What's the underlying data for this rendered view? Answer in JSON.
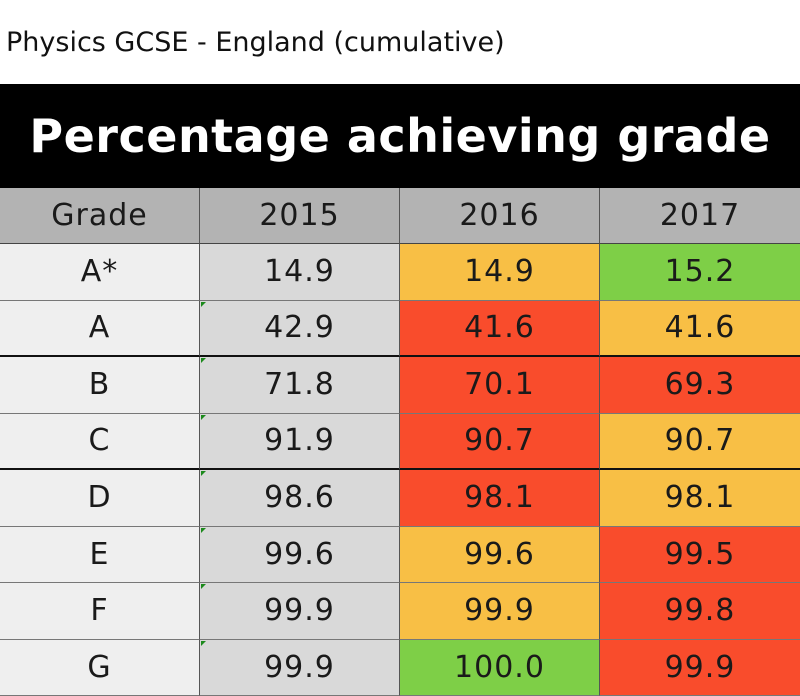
{
  "caption": "Physics GCSE - England (cumulative)",
  "chart_data": {
    "type": "table",
    "title": "Percentage achieving grade",
    "columns": [
      "Grade",
      "2015",
      "2016",
      "2017"
    ],
    "rows": [
      {
        "grade": "A*",
        "values": [
          "14.9",
          "14.9",
          "15.2"
        ],
        "colors": [
          "#d9d9d9",
          "#f8bf45",
          "#7ecf47"
        ]
      },
      {
        "grade": "A",
        "values": [
          "42.9",
          "41.6",
          "41.6"
        ],
        "colors": [
          "#d9d9d9",
          "#f94c2c",
          "#f8bf45"
        ]
      },
      {
        "grade": "B",
        "values": [
          "71.8",
          "70.1",
          "69.3"
        ],
        "colors": [
          "#d9d9d9",
          "#f94c2c",
          "#f94c2c"
        ]
      },
      {
        "grade": "C",
        "values": [
          "91.9",
          "90.7",
          "90.7"
        ],
        "colors": [
          "#d9d9d9",
          "#f94c2c",
          "#f8bf45"
        ]
      },
      {
        "grade": "D",
        "values": [
          "98.6",
          "98.1",
          "98.1"
        ],
        "colors": [
          "#d9d9d9",
          "#f94c2c",
          "#f8bf45"
        ]
      },
      {
        "grade": "E",
        "values": [
          "99.6",
          "99.6",
          "99.5"
        ],
        "colors": [
          "#d9d9d9",
          "#f8bf45",
          "#f94c2c"
        ]
      },
      {
        "grade": "F",
        "values": [
          "99.9",
          "99.9",
          "99.8"
        ],
        "colors": [
          "#d9d9d9",
          "#f8bf45",
          "#f94c2c"
        ]
      },
      {
        "grade": "G",
        "values": [
          "99.9",
          "100.0",
          "99.9"
        ],
        "colors": [
          "#d9d9d9",
          "#7ecf47",
          "#f94c2c"
        ]
      }
    ]
  },
  "colors": {
    "banner": "#000000",
    "header": "#b3b3b3",
    "grade_column": "#efefef",
    "base_year": "#d9d9d9",
    "increase": "#7ecf47",
    "same": "#f8bf45",
    "decrease": "#f94c2c"
  }
}
